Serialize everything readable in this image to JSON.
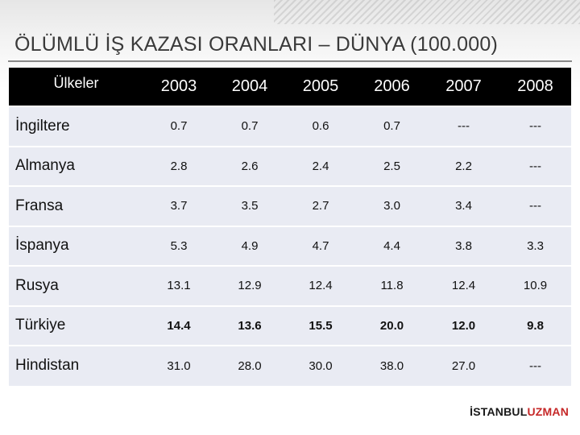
{
  "title": "ÖLÜMLÜ İŞ KAZASI ORANLARI – DÜNYA (100.000)",
  "table": {
    "header": {
      "country": "Ülkeler",
      "years": [
        "2003",
        "2004",
        "2005",
        "2006",
        "2007",
        "2008"
      ]
    },
    "rows": [
      {
        "country": "İngiltere",
        "values": [
          "0.7",
          "0.7",
          "0.6",
          "0.7",
          "---",
          "---"
        ],
        "bold": false
      },
      {
        "country": "Almanya",
        "values": [
          "2.8",
          "2.6",
          "2.4",
          "2.5",
          "2.2",
          "---"
        ],
        "bold": false
      },
      {
        "country": "Fransa",
        "values": [
          "3.7",
          "3.5",
          "2.7",
          "3.0",
          "3.4",
          "---"
        ],
        "bold": false
      },
      {
        "country": "İspanya",
        "values": [
          "5.3",
          "4.9",
          "4.7",
          "4.4",
          "3.8",
          "3.3"
        ],
        "bold": false
      },
      {
        "country": "Rusya",
        "values": [
          "13.1",
          "12.9",
          "12.4",
          "11.8",
          "12.4",
          "10.9"
        ],
        "bold": false
      },
      {
        "country": "Türkiye",
        "values": [
          "14.4",
          "13.6",
          "15.5",
          "20.0",
          "12.0",
          "9.8"
        ],
        "bold": true
      },
      {
        "country": "Hindistan",
        "values": [
          "31.0",
          "28.0",
          "30.0",
          "38.0",
          "27.0",
          "---"
        ],
        "bold": false
      }
    ]
  },
  "logo": {
    "part1": "İSTANBUL",
    "part2": "UZMAN",
    "accent_color": "#c62828"
  },
  "colors": {
    "header_bg": "#000000",
    "row_bg": "#e9ebf3"
  }
}
